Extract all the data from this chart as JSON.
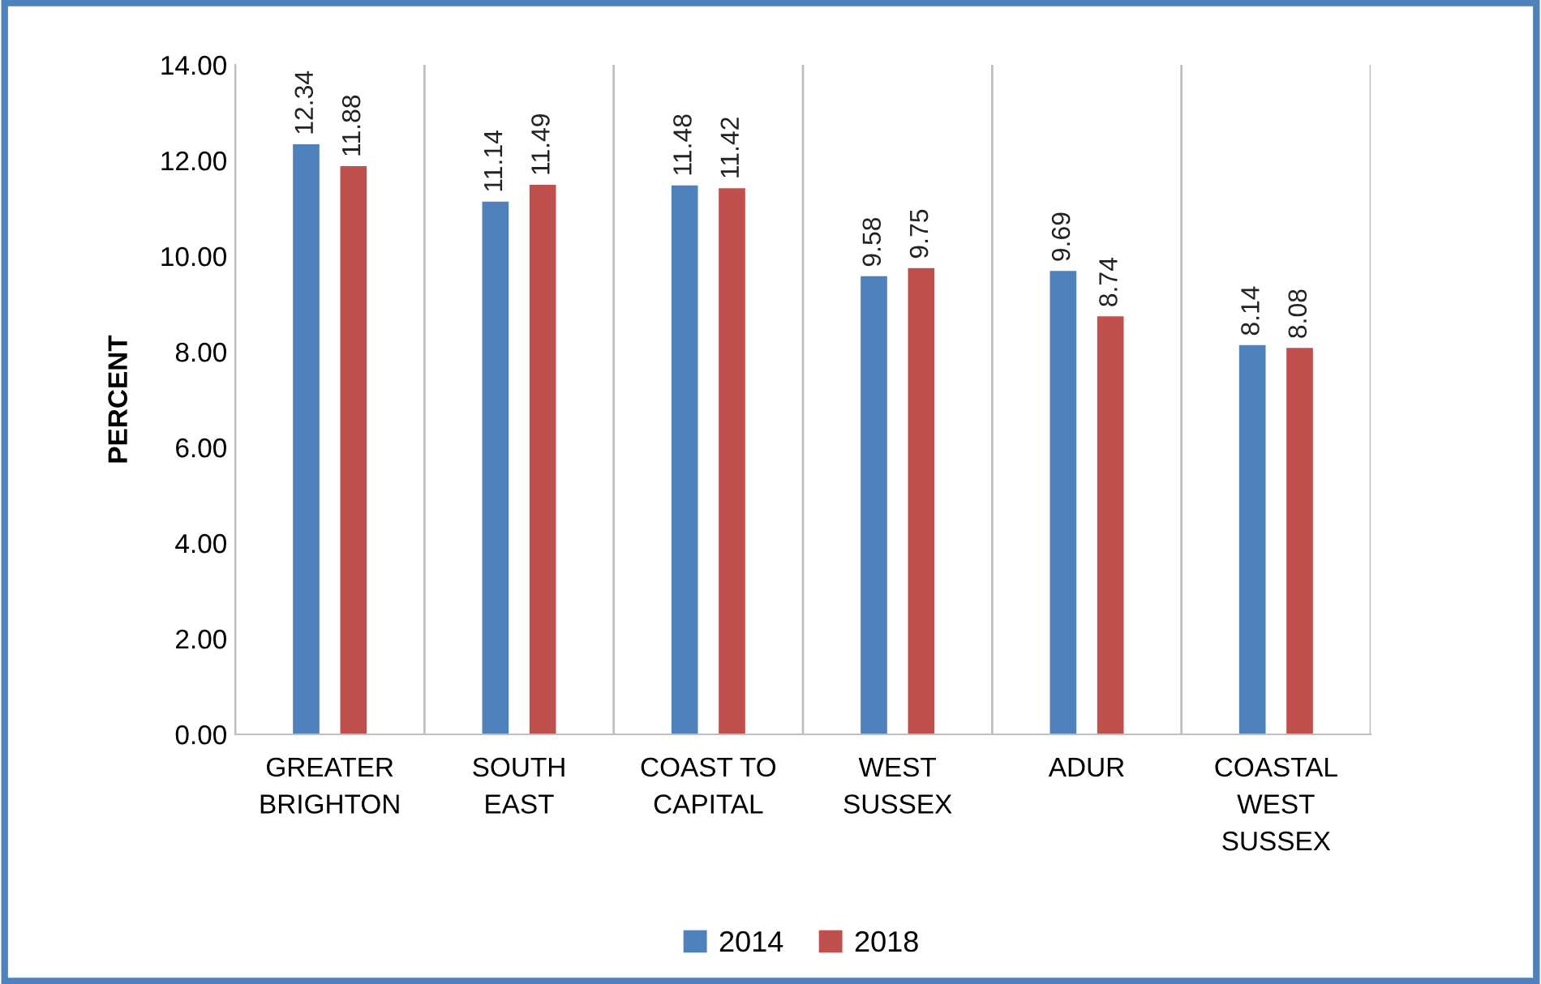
{
  "chart_data": {
    "type": "bar",
    "ylabel": "PERCENT",
    "categories": [
      "GREATER\nBRIGHTON",
      "SOUTH\nEAST",
      "COAST TO\nCAPITAL",
      "WEST\nSUSSEX",
      "ADUR",
      "COASTAL\nWEST\nSUSSEX"
    ],
    "series": [
      {
        "name": "2014",
        "color": "#4f81bd",
        "values": [
          12.34,
          11.14,
          11.48,
          9.58,
          9.69,
          8.14
        ]
      },
      {
        "name": "2018",
        "color": "#c0504d",
        "values": [
          11.88,
          11.49,
          11.42,
          9.75,
          8.74,
          8.08
        ]
      }
    ],
    "ylim": [
      0,
      14
    ],
    "yticks": [
      {
        "value": 0,
        "label": "0.00"
      },
      {
        "value": 2,
        "label": "2.00"
      },
      {
        "value": 4,
        "label": "4.00"
      },
      {
        "value": 6,
        "label": "6.00"
      },
      {
        "value": 8,
        "label": "8.00"
      },
      {
        "value": 10,
        "label": "10.00"
      },
      {
        "value": 12,
        "label": "12.00"
      },
      {
        "value": 14,
        "label": "14.00"
      }
    ],
    "grid": "x",
    "legend": "bottom",
    "data_labels": true
  }
}
